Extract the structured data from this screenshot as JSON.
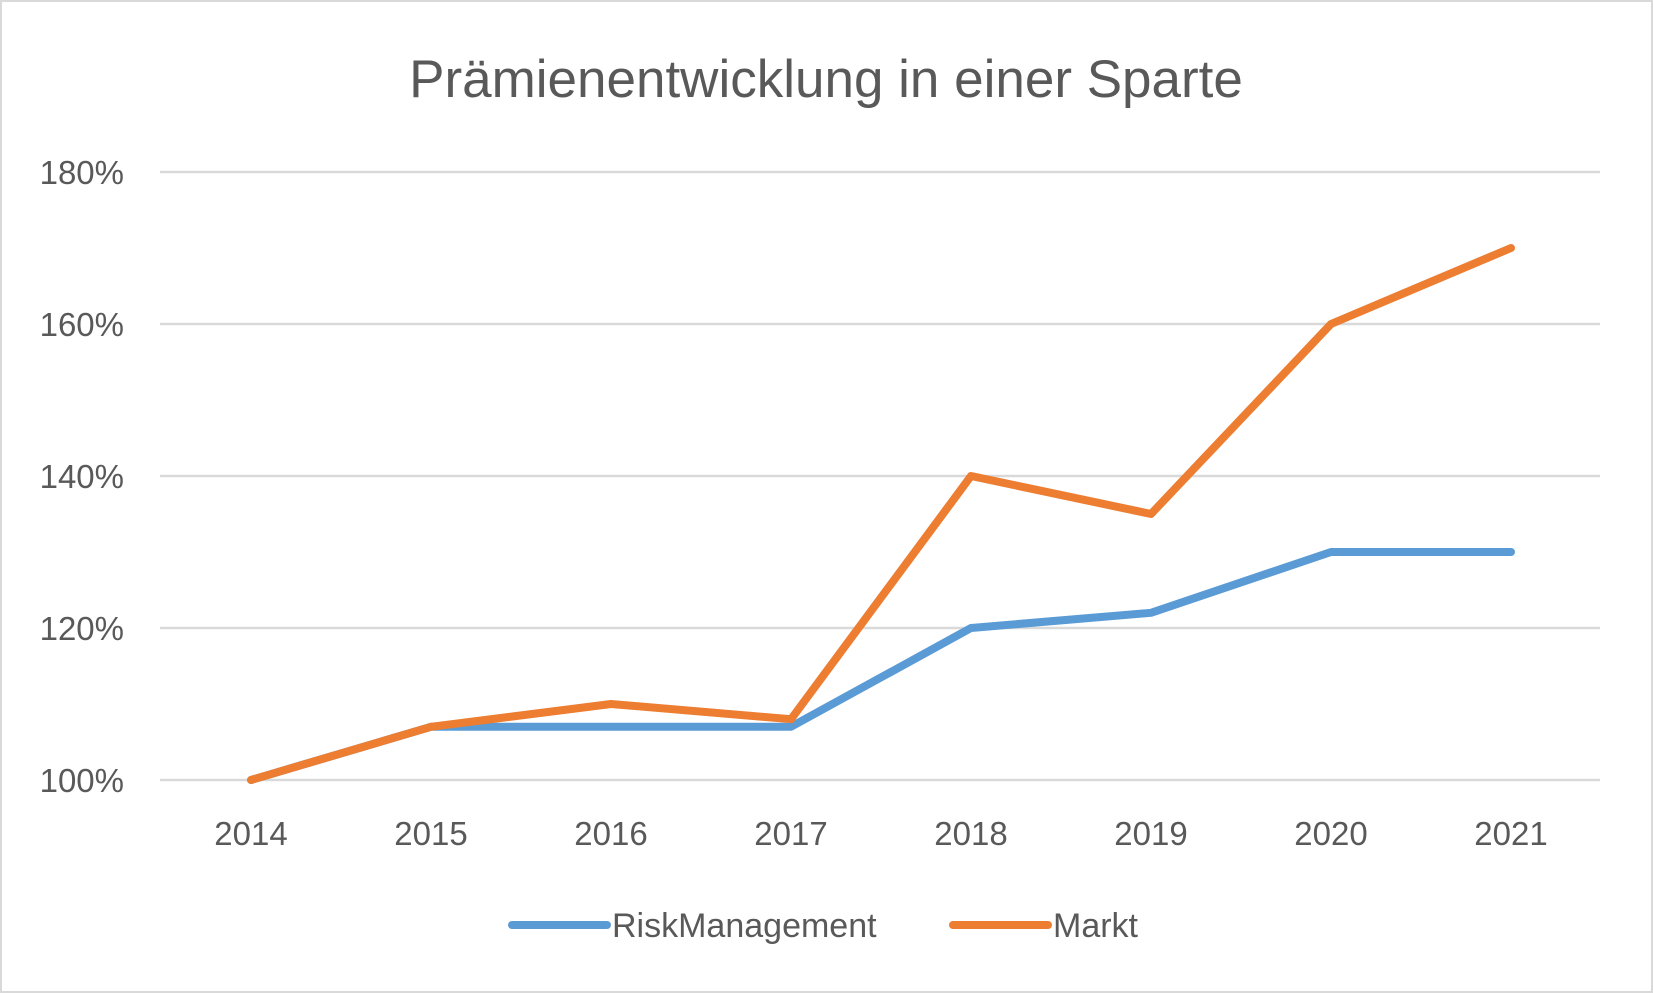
{
  "chart_data": {
    "type": "line",
    "title": "Prämienentwicklung in einer Sparte",
    "xlabel": "",
    "ylabel": "",
    "categories": [
      "2014",
      "2015",
      "2016",
      "2017",
      "2018",
      "2019",
      "2020",
      "2021"
    ],
    "series": [
      {
        "name": "RiskManagement",
        "color": "#5B9BD5",
        "values": [
          100,
          107,
          107,
          107,
          120,
          122,
          130,
          130
        ]
      },
      {
        "name": "Markt",
        "color": "#ED7D31",
        "values": [
          100,
          107,
          110,
          108,
          140,
          135,
          160,
          170
        ]
      }
    ],
    "ylim": [
      100,
      180
    ],
    "yticks": [
      100,
      120,
      140,
      160,
      180
    ],
    "ytick_labels": [
      "100%",
      "120%",
      "140%",
      "160%",
      "180%"
    ],
    "grid": true,
    "legend": "bottom"
  }
}
